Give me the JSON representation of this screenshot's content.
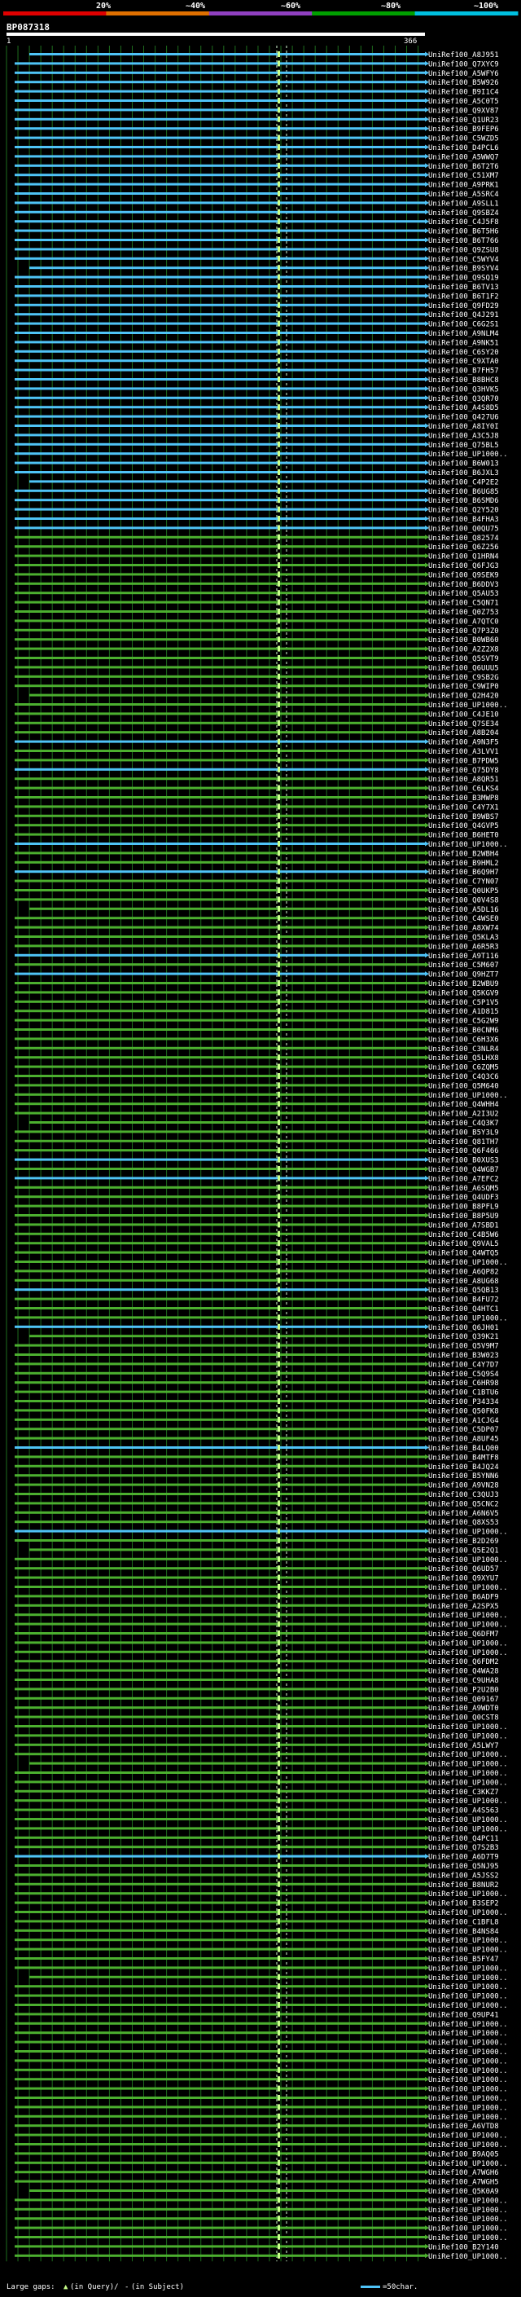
{
  "chart_data": {
    "type": "alignment",
    "title": "BP087318",
    "query_start": "1",
    "query_length": 366,
    "query_length_label": "366",
    "identity_scale": {
      "labels": [
        "20%",
        "~40%",
        "~60%",
        "~80%",
        "~100%"
      ],
      "colors": [
        "#e00000",
        "#e07000",
        "#9040c0",
        "#00a000",
        "#00c0e0"
      ]
    },
    "series_colors": {
      "high_identity": "#4fc3f7",
      "medium_identity": "#4caf2f",
      "gap": "#1a2a1a",
      "marker": "#c8ff8a",
      "grid": "#1e6e1e"
    },
    "hits": [
      "UniRef100_A8J951",
      "UniRef100_Q7XYC9",
      "UniRef100_A5WFY6",
      "UniRef100_B5W926",
      "UniRef100_B9I1C4",
      "UniRef100_A5C0T5",
      "UniRef100_Q9XV87",
      "UniRef100_Q1UR23",
      "UniRef100_B9FEP6",
      "UniRef100_C5WZD5",
      "UniRef100_D4PCL6",
      "UniRef100_A5WWQ7",
      "UniRef100_B6T2T6",
      "UniRef100_C51XM7",
      "UniRef100_A9PRK1",
      "UniRef100_A5SRC4",
      "UniRef100_A9SLL1",
      "UniRef100_Q9SBZ4",
      "UniRef100_C4J5F8",
      "UniRef100_B6T5H6",
      "UniRef100_B6T766",
      "UniRef100_Q9ZSU8",
      "UniRef100_C5WYV4",
      "UniRef100_B9SYV4",
      "UniRef100_Q9SQ19",
      "UniRef100_B6TV13",
      "UniRef100_B6T1F2",
      "UniRef100_Q9FD29",
      "UniRef100_Q4J291",
      "UniRef100_C6G2S1",
      "UniRef100_A9NLM4",
      "UniRef100_A9NK51",
      "UniRef100_C6SY20",
      "UniRef100_C9XTA0",
      "UniRef100_B7FH57",
      "UniRef100_B8BHC8",
      "UniRef100_Q3HVK5",
      "UniRef100_Q3QR70",
      "UniRef100_A4S8D5",
      "UniRef100_Q427U6",
      "UniRef100_A8IY0I",
      "UniRef100_A3C5J8",
      "UniRef100_Q75BL5",
      "UniRef100_UP1000..",
      "UniRef100_B6W013",
      "UniRef100_B6JXL3",
      "UniRef100_C4P2E2",
      "UniRef100_B6UG85",
      "UniRef100_B6SMD6",
      "UniRef100_Q2Y520",
      "UniRef100_B4FHA3",
      "UniRef100_Q0QU75",
      "UniRef100_Q82574",
      "UniRef100_Q6Z256",
      "UniRef100_Q1HRN4",
      "UniRef100_Q6FJG3",
      "UniRef100_Q9SEK9",
      "UniRef100_B6DDV3",
      "UniRef100_Q5AU53",
      "UniRef100_C5QN71",
      "UniRef100_Q0Z753",
      "UniRef100_A7QTC0",
      "UniRef100_Q7P3Z0",
      "UniRef100_B0WB60",
      "UniRef100_A2Z2X8",
      "UniRef100_Q5SVT9",
      "UniRef100_Q6UUU5",
      "UniRef100_C9SB2G",
      "UniRef100_C9WIP0",
      "UniRef100_Q2H420",
      "UniRef100_UP1000..",
      "UniRef100_C4JE10",
      "UniRef100_Q7SE34",
      "UniRef100_A8B204",
      "UniRef100_A9N3F5",
      "UniRef100_A3LVV1",
      "UniRef100_B7PDW5",
      "UniRef100_Q75DY8",
      "UniRef100_A8QR51",
      "UniRef100_C6LKS4",
      "UniRef100_B3MWP8",
      "UniRef100_C4Y7X1",
      "UniRef100_B9WBS7",
      "UniRef100_Q4GVP5",
      "UniRef100_B6HET0",
      "UniRef100_UP1000..",
      "UniRef100_B2WBH4",
      "UniRef100_B9HML2",
      "UniRef100_B6Q9H7",
      "UniRef100_C7YN07",
      "UniRef100_Q0UKP5",
      "UniRef100_Q0V4S8",
      "UniRef100_A5DL16",
      "UniRef100_C4WSE0",
      "UniRef100_A8XW74",
      "UniRef100_Q5KLA3",
      "UniRef100_A6R5R3",
      "UniRef100_A9T116",
      "UniRef100_C5M607",
      "UniRef100_Q9HZT7",
      "UniRef100_B2WBU9",
      "UniRef100_Q5KGV9",
      "UniRef100_C5P1V5",
      "UniRef100_A1D815",
      "UniRef100_C5G2W9",
      "UniRef100_B0CNM6",
      "UniRef100_C6H3X6",
      "UniRef100_C3NLR4",
      "UniRef100_Q5LHX8",
      "UniRef100_C6ZQM5",
      "UniRef100_C4Q3C6",
      "UniRef100_Q5M640",
      "UniRef100_UP1000..",
      "UniRef100_Q4WHH4",
      "UniRef100_A2I3U2",
      "UniRef100_C4Q3K7",
      "UniRef100_B5Y3L9",
      "UniRef100_Q81TH7",
      "UniRef100_Q6F466",
      "UniRef100_B0XUS3",
      "UniRef100_Q4WGB7",
      "UniRef100_A7EFC2",
      "UniRef100_A6SQM5",
      "UniRef100_Q4UDF3",
      "UniRef100_B8PFL9",
      "UniRef100_B8P5U9",
      "UniRef100_A7SBD1",
      "UniRef100_C4B5W6",
      "UniRef100_Q9VAL5",
      "UniRef100_Q4WTQ5",
      "UniRef100_UP1000..",
      "UniRef100_A6QP82",
      "UniRef100_A8UG68",
      "UniRef100_Q5QB13",
      "UniRef100_B4FU72",
      "UniRef100_Q4HTC1",
      "UniRef100_UP1000..",
      "UniRef100_Q6JH01",
      "UniRef100_Q39K21",
      "UniRef100_Q5V9M7",
      "UniRef100_B3W023",
      "UniRef100_C4Y7D7",
      "UniRef100_C5Q9S4",
      "UniRef100_C6HR98",
      "UniRef100_C1BTU6",
      "UniRef100_P34334",
      "UniRef100_Q50FK8",
      "UniRef100_A1CJG4",
      "UniRef100_C5DP07",
      "UniRef100_A8UF45",
      "UniRef100_B4LQ00",
      "UniRef100_B4MTF8",
      "UniRef100_B4JQ24",
      "UniRef100_B5YNN6",
      "UniRef100_A9VN28",
      "UniRef100_C3QUJ3",
      "UniRef100_Q5CNC2",
      "UniRef100_A6N6V5",
      "UniRef100_Q8XS53",
      "UniRef100_UP1000..",
      "UniRef100_B2D269",
      "UniRef100_Q5E2Q1",
      "UniRef100_UP1000..",
      "UniRef100_Q6UD57",
      "UniRef100_Q9XYU7",
      "UniRef100_UP1000..",
      "UniRef100_B6ADF9",
      "UniRef100_A2SPX5",
      "UniRef100_UP1000..",
      "UniRef100_UP1000..",
      "UniRef100_Q6DFM7",
      "UniRef100_UP1000..",
      "UniRef100_UP1000..",
      "UniRef100_Q6FDM2",
      "UniRef100_Q4WA28",
      "UniRef100_C9UHA8",
      "UniRef100_P2U2B0",
      "UniRef100_Q09167",
      "UniRef100_A9WDT0",
      "UniRef100_Q0CST8",
      "UniRef100_UP1000..",
      "UniRef100_UP1000..",
      "UniRef100_A5LWY7",
      "UniRef100_UP1000..",
      "UniRef100_UP1000..",
      "UniRef100_UP1000..",
      "UniRef100_UP1000..",
      "UniRef100_C3KKZ7",
      "UniRef100_UP1000..",
      "UniRef100_A4S563",
      "UniRef100_UP1000..",
      "UniRef100_UP1000..",
      "UniRef100_Q4PC11",
      "UniRef100_Q7S2B3",
      "UniRef100_A6D7T9",
      "UniRef100_Q5NJ95",
      "UniRef100_A5JSS2",
      "UniRef100_B8NUR2",
      "UniRef100_UP1000..",
      "UniRef100_B3SEP2",
      "UniRef100_UP1000..",
      "UniRef100_C1BFL8",
      "UniRef100_B4NS84",
      "UniRef100_UP1000..",
      "UniRef100_UP1000..",
      "UniRef100_B5FY47",
      "UniRef100_UP1000..",
      "UniRef100_UP1000..",
      "UniRef100_UP1000..",
      "UniRef100_UP1000..",
      "UniRef100_UP1000..",
      "UniRef100_Q9UP41",
      "UniRef100_UP1000..",
      "UniRef100_UP1000..",
      "UniRef100_UP1000..",
      "UniRef100_UP1000..",
      "UniRef100_UP1000..",
      "UniRef100_UP1000..",
      "UniRef100_UP1000..",
      "UniRef100_UP1000..",
      "UniRef100_UP1000..",
      "UniRef100_UP1000..",
      "UniRef100_UP1000..",
      "UniRef100_A6VTD8",
      "UniRef100_UP1000..",
      "UniRef100_UP1000..",
      "UniRef100_B9AQ05",
      "UniRef100_UP1000..",
      "UniRef100_A7WGH6",
      "UniRef100_A7WGH5",
      "UniRef100_Q5K0A9",
      "UniRef100_UP1000..",
      "UniRef100_UP1000..",
      "UniRef100_UP1000..",
      "UniRef100_UP1000..",
      "UniRef100_UP1000..",
      "UniRef100_B2Y140",
      "UniRef100_UP1000.."
    ],
    "legend": {
      "large_gaps": "Large gaps:",
      "in_query": "(in Query)/",
      "in_subject": "(in Subject)",
      "scale_label": "=50char."
    }
  }
}
